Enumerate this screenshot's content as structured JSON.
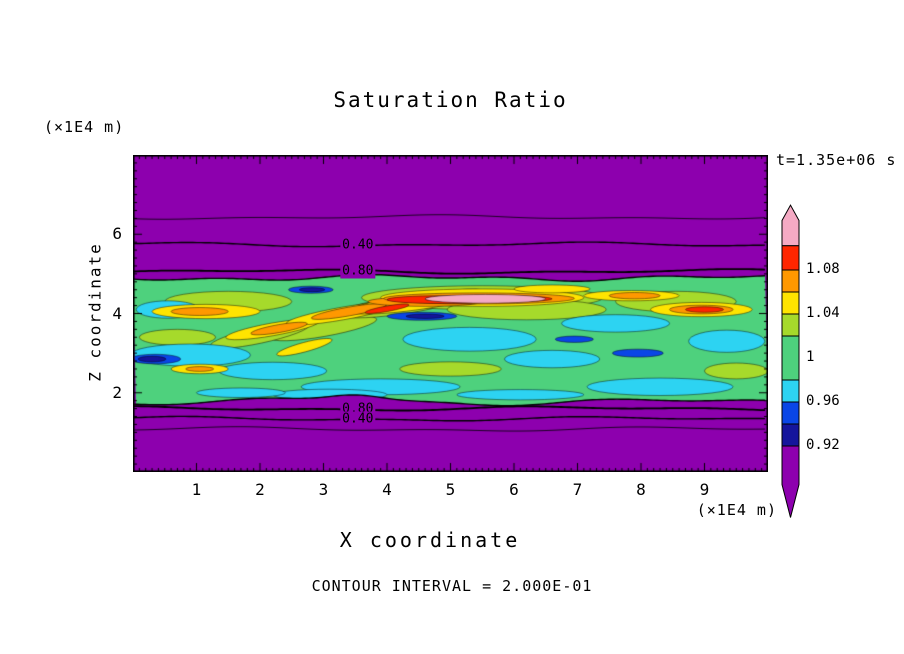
{
  "chart_data": {
    "type": "heatmap",
    "subtype": "filled contour plot",
    "title": "Saturation Ratio",
    "xlabel": "X coordinate",
    "ylabel": "Z coordinate",
    "x_unit": "(×1E4 m)",
    "y_unit": "(×1E4 m)",
    "time_annotation": "t=1.35e+06 s",
    "contour_interval_label": "CONTOUR INTERVAL = 2.000E-01",
    "contour_interval": 0.2,
    "xlim": [
      0,
      10
    ],
    "ylim": [
      0,
      8
    ],
    "x_ticks": [
      1,
      2,
      3,
      4,
      5,
      6,
      7,
      8,
      9
    ],
    "y_ticks": [
      2,
      4,
      6
    ],
    "palette": {
      "purple": "#8d00ae",
      "navy": "#15159c",
      "blue": "#0a46e6",
      "cyan": "#2dd3f2",
      "green": "#4ed17d",
      "ygreen": "#a6da2b",
      "yellow": "#ffe400",
      "orange": "#ff9800",
      "red": "#ff2600",
      "pink": "#f5aac4"
    },
    "band": {
      "z_bottom": 1.77,
      "z_top": 4.9,
      "description": "saturated turbulent layer S≈0.9–1.12 between z≈1.8 and z≈4.9 (×1E4 m); subsaturated purple region S<0.2 above and below"
    },
    "outer_contour_lines": [
      {
        "z": 6.43,
        "w": 0.8,
        "level": 0.2
      },
      {
        "z": 5.74,
        "w": 1.4,
        "level": 0.4
      },
      {
        "z": 5.06,
        "w": 1.8,
        "level": 0.8
      },
      {
        "z": 1.6,
        "w": 1.8,
        "level": 0.8
      },
      {
        "z": 1.34,
        "w": 1.4,
        "level": 0.4
      },
      {
        "z": 1.08,
        "w": 0.8,
        "level": 0.2
      }
    ],
    "contour_line_labels": [
      {
        "text": "0.40",
        "x": 3.54,
        "z": 5.74
      },
      {
        "text": "0.80",
        "x": 3.54,
        "z": 5.06
      },
      {
        "text": "0.80",
        "x": 3.54,
        "z": 1.6
      },
      {
        "text": "0.40",
        "x": 3.54,
        "z": 1.34
      }
    ],
    "draw_order": [
      "ygreen",
      "cyan",
      "yellow",
      "orange",
      "red",
      "pink",
      "blue",
      "navy"
    ],
    "features": {
      "cyan": [
        [
          0.9,
          2.95,
          0.95,
          0.28
        ],
        [
          2.2,
          2.55,
          0.85,
          0.22
        ],
        [
          3.9,
          2.15,
          1.25,
          0.2
        ],
        [
          5.3,
          3.35,
          1.05,
          0.3
        ],
        [
          6.6,
          2.85,
          0.75,
          0.22
        ],
        [
          8.3,
          2.15,
          1.15,
          0.22
        ],
        [
          9.35,
          3.3,
          0.6,
          0.28
        ],
        [
          7.6,
          3.75,
          0.85,
          0.22
        ],
        [
          0.55,
          4.1,
          0.5,
          0.22
        ],
        [
          3.1,
          1.95,
          0.9,
          0.14
        ],
        [
          6.1,
          1.95,
          1.0,
          0.13
        ],
        [
          1.7,
          2.0,
          0.7,
          0.12
        ]
      ],
      "ygreen": [
        [
          1.5,
          4.3,
          1.0,
          0.26
        ],
        [
          3.0,
          3.62,
          0.85,
          0.2,
          -10
        ],
        [
          2.0,
          3.45,
          0.8,
          0.2,
          -12
        ],
        [
          4.2,
          4.2,
          1.0,
          0.22,
          -8
        ],
        [
          5.5,
          4.4,
          1.9,
          0.3
        ],
        [
          6.2,
          4.1,
          1.25,
          0.26
        ],
        [
          8.55,
          4.3,
          0.95,
          0.26
        ],
        [
          9.5,
          2.55,
          0.5,
          0.2
        ],
        [
          5.0,
          2.6,
          0.8,
          0.18
        ],
        [
          0.7,
          3.4,
          0.6,
          0.2
        ]
      ],
      "yellow": [
        [
          1.15,
          4.05,
          0.85,
          0.18
        ],
        [
          2.2,
          3.6,
          0.75,
          0.16,
          -10
        ],
        [
          3.3,
          4.0,
          0.9,
          0.16,
          -10
        ],
        [
          4.5,
          4.3,
          1.1,
          0.2,
          -8
        ],
        [
          5.5,
          4.4,
          1.6,
          0.22
        ],
        [
          7.85,
          4.45,
          0.75,
          0.13
        ],
        [
          8.95,
          4.1,
          0.8,
          0.18
        ],
        [
          2.7,
          3.15,
          0.45,
          0.12,
          -15
        ],
        [
          6.6,
          4.62,
          0.6,
          0.1
        ],
        [
          1.05,
          2.6,
          0.45,
          0.12
        ]
      ],
      "orange": [
        [
          2.3,
          3.62,
          0.45,
          0.1,
          -10
        ],
        [
          3.4,
          4.05,
          0.6,
          0.11,
          -10
        ],
        [
          4.6,
          4.3,
          0.9,
          0.12
        ],
        [
          5.45,
          4.38,
          1.5,
          0.14
        ],
        [
          8.95,
          4.1,
          0.5,
          0.11
        ],
        [
          1.05,
          4.05,
          0.45,
          0.1
        ],
        [
          7.9,
          4.45,
          0.4,
          0.08
        ],
        [
          1.05,
          2.6,
          0.22,
          0.06
        ]
      ],
      "red": [
        [
          4.9,
          4.35,
          0.9,
          0.1
        ],
        [
          5.6,
          4.37,
          1.0,
          0.09
        ],
        [
          4.0,
          4.12,
          0.35,
          0.07,
          -10
        ],
        [
          9.0,
          4.1,
          0.3,
          0.07
        ]
      ],
      "pink": [
        [
          5.55,
          4.37,
          0.95,
          0.11
        ]
      ],
      "blue": [
        [
          4.55,
          3.93,
          0.55,
          0.1
        ],
        [
          2.8,
          4.6,
          0.35,
          0.09
        ],
        [
          7.95,
          3.0,
          0.4,
          0.1
        ],
        [
          0.35,
          2.85,
          0.4,
          0.12
        ],
        [
          6.95,
          3.35,
          0.3,
          0.08
        ]
      ],
      "navy": [
        [
          4.6,
          3.93,
          0.3,
          0.055
        ],
        [
          2.82,
          4.6,
          0.2,
          0.05
        ],
        [
          0.3,
          2.85,
          0.22,
          0.07
        ]
      ]
    },
    "colorbar": {
      "top_tip": 1.139,
      "bottom_tip": 0.855,
      "segments": [
        {
          "key": "pink",
          "from": 1.102,
          "to": 1.125
        },
        {
          "key": "red",
          "from": 1.08,
          "to": 1.102
        },
        {
          "key": "orange",
          "from": 1.06,
          "to": 1.08
        },
        {
          "key": "yellow",
          "from": 1.04,
          "to": 1.06
        },
        {
          "key": "ygreen",
          "from": 1.02,
          "to": 1.04
        },
        {
          "key": "green",
          "from": 0.98,
          "to": 1.02
        },
        {
          "key": "cyan",
          "from": 0.96,
          "to": 0.98
        },
        {
          "key": "blue",
          "from": 0.94,
          "to": 0.96
        },
        {
          "key": "navy",
          "from": 0.92,
          "to": 0.94
        },
        {
          "key": "purple",
          "from": 0.885,
          "to": 0.92
        }
      ],
      "labels": [
        {
          "text": "1.08",
          "value": 1.08
        },
        {
          "text": "1.04",
          "value": 1.04
        },
        {
          "text": "1",
          "value": 1.0
        },
        {
          "text": "0.96",
          "value": 0.96
        },
        {
          "text": "0.92",
          "value": 0.92
        }
      ]
    }
  }
}
